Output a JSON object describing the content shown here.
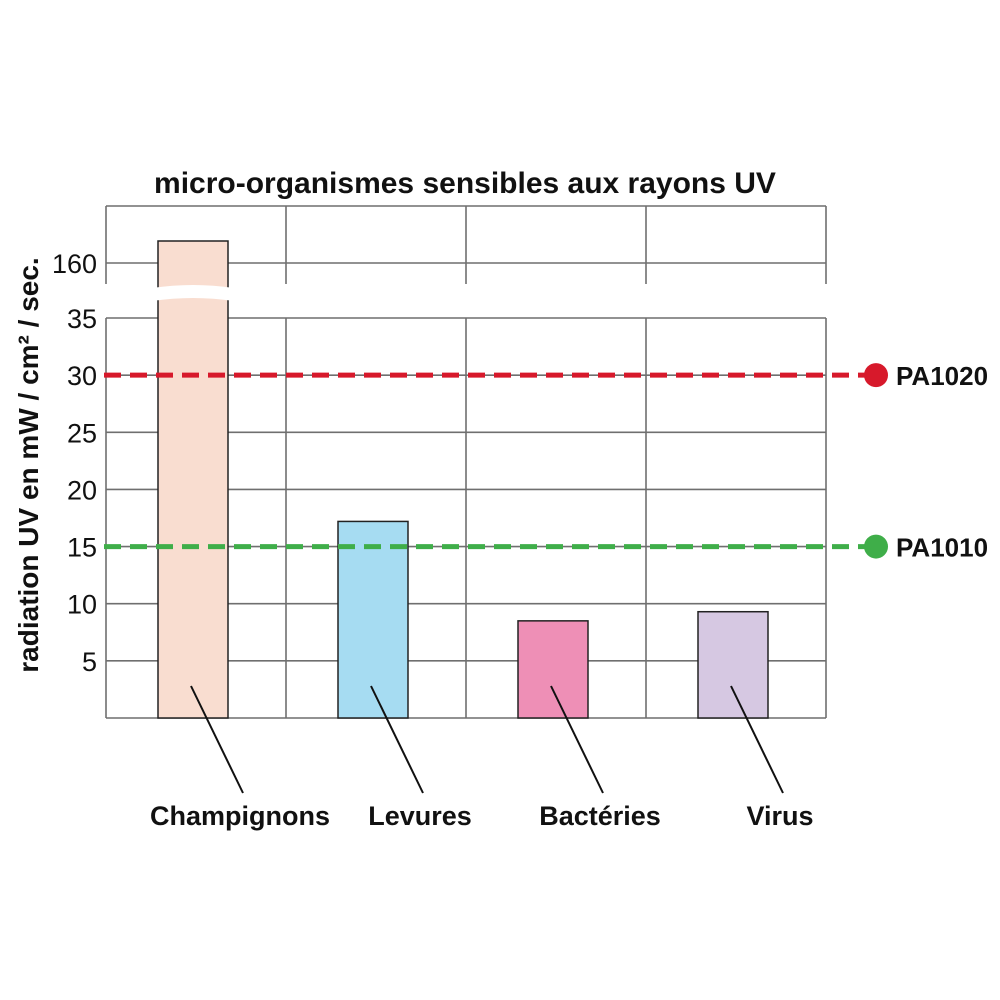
{
  "chart_data": {
    "type": "bar",
    "title": "micro-organismes sensibles aux rayons UV",
    "ylabel": "radiation UV en mW / cm² / sec.",
    "xlabel": "",
    "categories": [
      "Champignons",
      "Levures",
      "Bactéries",
      "Virus"
    ],
    "values": [
      165,
      17.2,
      8.5,
      9.3
    ],
    "colors": [
      "#f9ddd0",
      "#a6dcf2",
      "#ee8fb6",
      "#d6c8e2"
    ],
    "y_ticks_lower": [
      5,
      10,
      15,
      20,
      25,
      30,
      35
    ],
    "y_ticks_upper": [
      160
    ],
    "ylim": [
      0,
      35
    ],
    "ylim_upper": [
      160,
      165
    ],
    "axis_break": true,
    "grid": true,
    "reference_lines": [
      {
        "name": "PA1020",
        "value": 30,
        "color": "#d7192b"
      },
      {
        "name": "PA1010",
        "value": 15,
        "color": "#3fae49"
      }
    ]
  }
}
